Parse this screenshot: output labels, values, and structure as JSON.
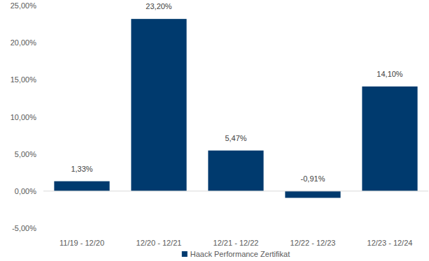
{
  "chart_data": {
    "type": "bar",
    "categories": [
      "11/19 - 12/20",
      "12/20 - 12/21",
      "12/21 - 12/22",
      "12/22 - 12/23",
      "12/23 - 12/24"
    ],
    "series": [
      {
        "name": "Haack Performance Zertifikat",
        "color": "#003a6e",
        "values": [
          1.33,
          23.2,
          5.47,
          -0.91,
          14.1
        ],
        "value_labels": [
          "1,33%",
          "23,20%",
          "5,47%",
          "-0,91%",
          "14,10%"
        ]
      }
    ],
    "ylim": [
      -5,
      25
    ],
    "yticks": [
      {
        "value": -5,
        "label": "-5,00%"
      },
      {
        "value": 0,
        "label": "0,00%"
      },
      {
        "value": 5,
        "label": "5,00%"
      },
      {
        "value": 10,
        "label": "10,00%"
      },
      {
        "value": 15,
        "label": "15,00%"
      },
      {
        "value": 20,
        "label": "20,00%"
      },
      {
        "value": 25,
        "label": "25,00%"
      }
    ],
    "grid": false,
    "data_labels": true,
    "legend": "bottom"
  }
}
